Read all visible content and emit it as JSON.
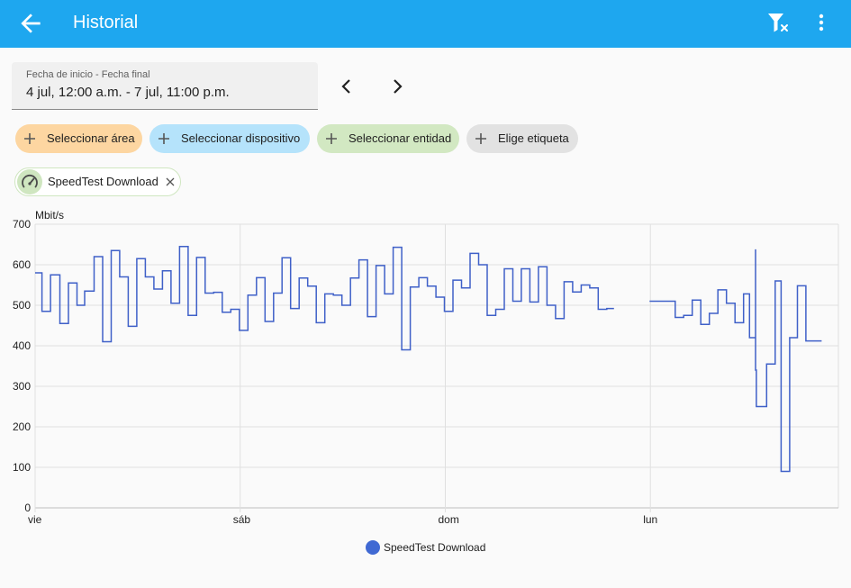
{
  "appbar": {
    "title": "Historial",
    "back_icon": "arrow-back-icon",
    "filter_clear_icon": "filter-remove-icon",
    "more_icon": "more-vert-icon"
  },
  "date_range": {
    "label": "Fecha de inicio - Fecha final",
    "value": "4 jul, 12:00 a.m. - 7 jul, 11:00 p.m.",
    "prev_icon": "chevron-left-icon",
    "next_icon": "chevron-right-icon"
  },
  "target_chips": [
    {
      "label": "Seleccionar área",
      "color": "#fdd6a1"
    },
    {
      "label": "Seleccionar dispositivo",
      "color": "#b5e3fb"
    },
    {
      "label": "Seleccionar entidad",
      "color": "#d2e8c2"
    },
    {
      "label": "Elige etiqueta",
      "color": "#e2e2e2"
    }
  ],
  "selected_entity": {
    "label": "SpeedTest Download",
    "icon": "speedometer-icon",
    "color": "#cfe6c0"
  },
  "colors": {
    "appbar": "#1ea7ef",
    "series": "#3f60c8",
    "legend_dot": "#4069d3"
  },
  "chart_data": {
    "type": "line",
    "ylabel": "Mbit/s",
    "ylim": [
      0,
      700
    ],
    "yticks": [
      "700",
      "600",
      "500",
      "400",
      "300",
      "200",
      "100",
      "0"
    ],
    "xlim": [
      0,
      94
    ],
    "x_units": "hours since vie 00:00",
    "xticks": [
      {
        "x": 0,
        "label": "vie"
      },
      {
        "x": 24,
        "label": "sáb"
      },
      {
        "x": 48,
        "label": "dom"
      },
      {
        "x": 72,
        "label": "lun"
      }
    ],
    "grid": true,
    "step": true,
    "legend_position": "bottom",
    "series": [
      {
        "name": "SpeedTest Download",
        "color": "#3f60c8",
        "segments": [
          [
            [
              0,
              580
            ],
            [
              0.8,
              485
            ],
            [
              1.8,
              575
            ],
            [
              2.9,
              455
            ],
            [
              3.9,
              555
            ],
            [
              4.9,
              500
            ],
            [
              5.8,
              535
            ],
            [
              6.9,
              620
            ],
            [
              7.9,
              410
            ],
            [
              8.9,
              635
            ],
            [
              9.9,
              570
            ],
            [
              10.9,
              448
            ],
            [
              11.9,
              615
            ],
            [
              12.9,
              570
            ],
            [
              13.9,
              540
            ],
            [
              14.9,
              585
            ],
            [
              15.9,
              505
            ],
            [
              16.9,
              645
            ],
            [
              17.9,
              475
            ],
            [
              18.9,
              618
            ],
            [
              19.9,
              530
            ],
            [
              20.9,
              532
            ],
            [
              21.9,
              483
            ],
            [
              22.9,
              490
            ],
            [
              23.9,
              438
            ],
            [
              24.9,
              525
            ],
            [
              25.9,
              568
            ],
            [
              26.9,
              460
            ],
            [
              27.9,
              530
            ],
            [
              28.9,
              617
            ],
            [
              29.9,
              492
            ],
            [
              30.9,
              567
            ],
            [
              31.9,
              547
            ],
            [
              32.9,
              457
            ],
            [
              33.9,
              528
            ],
            [
              34.9,
              525
            ],
            [
              35.9,
              500
            ],
            [
              36.9,
              567
            ],
            [
              37.9,
              612
            ],
            [
              38.9,
              472
            ],
            [
              39.9,
              598
            ],
            [
              40.9,
              528
            ],
            [
              41.9,
              643
            ],
            [
              42.9,
              390
            ],
            [
              43.9,
              545
            ],
            [
              44.9,
              568
            ],
            [
              45.9,
              547
            ],
            [
              46.9,
              520
            ],
            [
              47.9,
              485
            ],
            [
              48.9,
              562
            ],
            [
              49.9,
              543
            ],
            [
              50.9,
              628
            ],
            [
              51.9,
              600
            ],
            [
              52.9,
              475
            ],
            [
              53.9,
              490
            ],
            [
              54.9,
              590
            ],
            [
              55.9,
              510
            ],
            [
              56.9,
              590
            ],
            [
              57.9,
              508
            ],
            [
              58.9,
              595
            ],
            [
              59.9,
              500
            ],
            [
              60.9,
              467
            ],
            [
              61.9,
              558
            ],
            [
              62.9,
              533
            ],
            [
              63.9,
              550
            ],
            [
              64.9,
              543
            ],
            [
              65.9,
              490
            ],
            [
              66.9,
              492
            ]
          ],
          [
            [
              71.9,
              510
            ],
            [
              73.9,
              510
            ],
            [
              74.9,
              470
            ],
            [
              75.9,
              475
            ],
            [
              76.9,
              513
            ],
            [
              77.9,
              453
            ],
            [
              78.9,
              480
            ],
            [
              79.9,
              538
            ],
            [
              80.9,
              505
            ],
            [
              81.9,
              457
            ],
            [
              82.9,
              528
            ],
            [
              83.6,
              420
            ],
            [
              84.3,
              638
            ],
            [
              84.3,
              340
            ],
            [
              84.4,
              250
            ],
            [
              85.6,
              355
            ],
            [
              86.6,
              560
            ],
            [
              87.3,
              90
            ],
            [
              88.3,
              420
            ],
            [
              89.2,
              548
            ],
            [
              90.2,
              412
            ],
            [
              91.2,
              412
            ]
          ]
        ]
      }
    ]
  }
}
